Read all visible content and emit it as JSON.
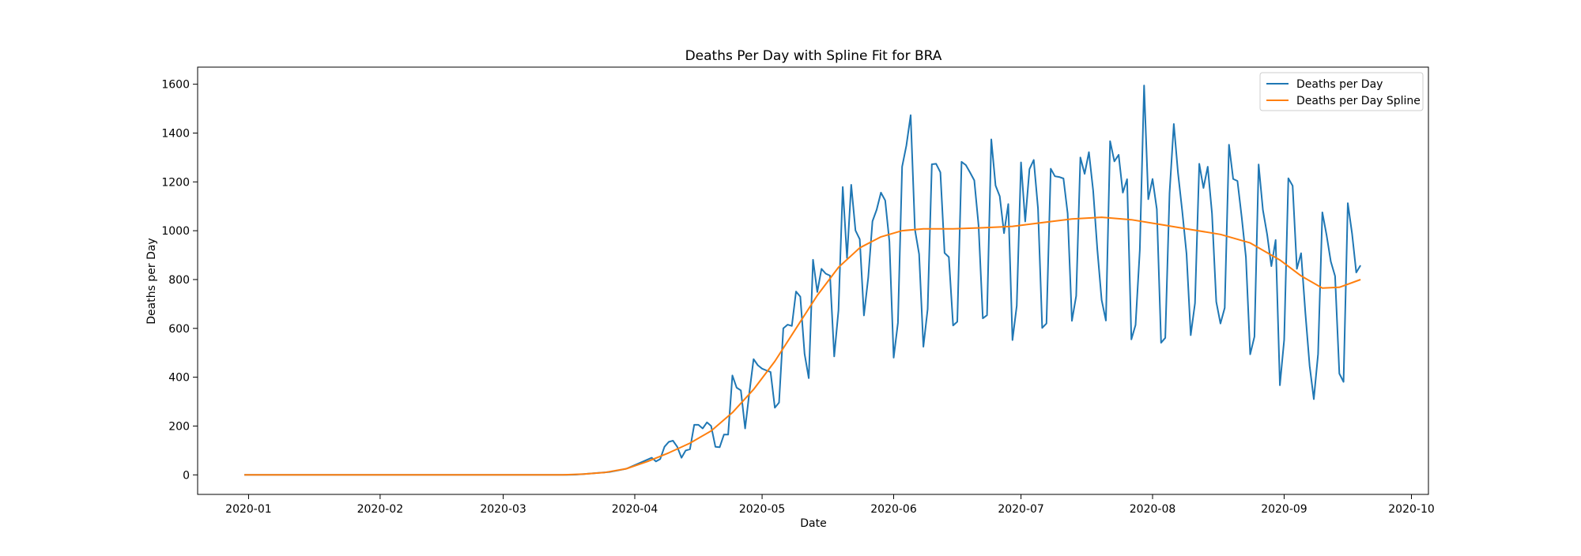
{
  "chart_data": {
    "type": "line",
    "title": "Deaths Per Day with Spline Fit for BRA",
    "xlabel": "Date",
    "ylabel": "Deaths per Day",
    "xlim": [
      "2019-12-20",
      "2020-10-05"
    ],
    "ylim": [
      -80,
      1670
    ],
    "x_ticks": [
      "2020-01",
      "2020-02",
      "2020-03",
      "2020-04",
      "2020-05",
      "2020-06",
      "2020-07",
      "2020-08",
      "2020-09",
      "2020-10"
    ],
    "y_ticks": [
      0,
      200,
      400,
      600,
      800,
      1000,
      1200,
      1400,
      1600
    ],
    "grid": false,
    "legend": {
      "position": "top-right",
      "entries": [
        "Deaths per Day",
        "Deaths per Day Spline"
      ]
    },
    "colors": {
      "Deaths per Day": "#1f77b4",
      "Deaths per Day Spline": "#ff7f0e"
    },
    "series": [
      {
        "name": "Deaths per Day",
        "points": [
          [
            "2019-12-31",
            0
          ],
          [
            "2020-01-15",
            0
          ],
          [
            "2020-02-01",
            0
          ],
          [
            "2020-02-15",
            0
          ],
          [
            "2020-03-01",
            0
          ],
          [
            "2020-03-16",
            0
          ],
          [
            "2020-03-18",
            1
          ],
          [
            "2020-03-20",
            3
          ],
          [
            "2020-03-22",
            6
          ],
          [
            "2020-03-24",
            9
          ],
          [
            "2020-03-26",
            12
          ],
          [
            "2020-03-28",
            18
          ],
          [
            "2020-03-30",
            25
          ],
          [
            "2020-04-01",
            40
          ],
          [
            "2020-04-03",
            55
          ],
          [
            "2020-04-05",
            70
          ],
          [
            "2020-04-06",
            55
          ],
          [
            "2020-04-07",
            65
          ],
          [
            "2020-04-08",
            115
          ],
          [
            "2020-04-09",
            135
          ],
          [
            "2020-04-10",
            140
          ],
          [
            "2020-04-11",
            115
          ],
          [
            "2020-04-12",
            70
          ],
          [
            "2020-04-13",
            100
          ],
          [
            "2020-04-14",
            105
          ],
          [
            "2020-04-15",
            205
          ],
          [
            "2020-04-16",
            205
          ],
          [
            "2020-04-17",
            190
          ],
          [
            "2020-04-18",
            215
          ],
          [
            "2020-04-19",
            200
          ],
          [
            "2020-04-20",
            115
          ],
          [
            "2020-04-21",
            113
          ],
          [
            "2020-04-22",
            165
          ],
          [
            "2020-04-23",
            165
          ],
          [
            "2020-04-24",
            407
          ],
          [
            "2020-04-25",
            357
          ],
          [
            "2020-04-26",
            346
          ],
          [
            "2020-04-27",
            190
          ],
          [
            "2020-04-28",
            338
          ],
          [
            "2020-04-29",
            474
          ],
          [
            "2020-04-30",
            449
          ],
          [
            "2020-05-01",
            435
          ],
          [
            "2020-05-02",
            428
          ],
          [
            "2020-05-03",
            421
          ],
          [
            "2020-05-04",
            275
          ],
          [
            "2020-05-05",
            296
          ],
          [
            "2020-05-06",
            600
          ],
          [
            "2020-05-07",
            615
          ],
          [
            "2020-05-08",
            610
          ],
          [
            "2020-05-09",
            751
          ],
          [
            "2020-05-10",
            730
          ],
          [
            "2020-05-11",
            496
          ],
          [
            "2020-05-12",
            396
          ],
          [
            "2020-05-13",
            881
          ],
          [
            "2020-05-14",
            749
          ],
          [
            "2020-05-15",
            844
          ],
          [
            "2020-05-16",
            824
          ],
          [
            "2020-05-17",
            816
          ],
          [
            "2020-05-18",
            485
          ],
          [
            "2020-05-19",
            674
          ],
          [
            "2020-05-20",
            1179
          ],
          [
            "2020-05-21",
            888
          ],
          [
            "2020-05-22",
            1188
          ],
          [
            "2020-05-23",
            1001
          ],
          [
            "2020-05-24",
            965
          ],
          [
            "2020-05-25",
            653
          ],
          [
            "2020-05-26",
            807
          ],
          [
            "2020-05-27",
            1039
          ],
          [
            "2020-05-28",
            1086
          ],
          [
            "2020-05-29",
            1156
          ],
          [
            "2020-05-30",
            1124
          ],
          [
            "2020-05-31",
            956
          ],
          [
            "2020-06-01",
            480
          ],
          [
            "2020-06-02",
            623
          ],
          [
            "2020-06-03",
            1262
          ],
          [
            "2020-06-04",
            1349
          ],
          [
            "2020-06-05",
            1473
          ],
          [
            "2020-06-06",
            1005
          ],
          [
            "2020-06-07",
            904
          ],
          [
            "2020-06-08",
            525
          ],
          [
            "2020-06-09",
            679
          ],
          [
            "2020-06-10",
            1272
          ],
          [
            "2020-06-11",
            1274
          ],
          [
            "2020-06-12",
            1239
          ],
          [
            "2020-06-13",
            909
          ],
          [
            "2020-06-14",
            892
          ],
          [
            "2020-06-15",
            612
          ],
          [
            "2020-06-16",
            627
          ],
          [
            "2020-06-17",
            1282
          ],
          [
            "2020-06-18",
            1269
          ],
          [
            "2020-06-19",
            1238
          ],
          [
            "2020-06-20",
            1206
          ],
          [
            "2020-06-21",
            1022
          ],
          [
            "2020-06-22",
            641
          ],
          [
            "2020-06-23",
            654
          ],
          [
            "2020-06-24",
            1374
          ],
          [
            "2020-06-25",
            1185
          ],
          [
            "2020-06-26",
            1141
          ],
          [
            "2020-06-27",
            990
          ],
          [
            "2020-06-28",
            1109
          ],
          [
            "2020-06-29",
            552
          ],
          [
            "2020-06-30",
            692
          ],
          [
            "2020-07-01",
            1280
          ],
          [
            "2020-07-02",
            1038
          ],
          [
            "2020-07-03",
            1252
          ],
          [
            "2020-07-04",
            1290
          ],
          [
            "2020-07-05",
            1091
          ],
          [
            "2020-07-06",
            602
          ],
          [
            "2020-07-07",
            620
          ],
          [
            "2020-07-08",
            1254
          ],
          [
            "2020-07-09",
            1223
          ],
          [
            "2020-07-10",
            1220
          ],
          [
            "2020-07-11",
            1214
          ],
          [
            "2020-07-12",
            1071
          ],
          [
            "2020-07-13",
            631
          ],
          [
            "2020-07-14",
            733
          ],
          [
            "2020-07-15",
            1300
          ],
          [
            "2020-07-16",
            1233
          ],
          [
            "2020-07-17",
            1322
          ],
          [
            "2020-07-18",
            1163
          ],
          [
            "2020-07-19",
            921
          ],
          [
            "2020-07-20",
            716
          ],
          [
            "2020-07-21",
            632
          ],
          [
            "2020-07-22",
            1367
          ],
          [
            "2020-07-23",
            1284
          ],
          [
            "2020-07-24",
            1311
          ],
          [
            "2020-07-25",
            1156
          ],
          [
            "2020-07-26",
            1211
          ],
          [
            "2020-07-27",
            555
          ],
          [
            "2020-07-28",
            614
          ],
          [
            "2020-07-29",
            921
          ],
          [
            "2020-07-30",
            1595
          ],
          [
            "2020-07-31",
            1129
          ],
          [
            "2020-08-01",
            1212
          ],
          [
            "2020-08-02",
            1088
          ],
          [
            "2020-08-03",
            541
          ],
          [
            "2020-08-04",
            561
          ],
          [
            "2020-08-05",
            1154
          ],
          [
            "2020-08-06",
            1437
          ],
          [
            "2020-08-07",
            1237
          ],
          [
            "2020-08-08",
            1079
          ],
          [
            "2020-08-09",
            905
          ],
          [
            "2020-08-10",
            572
          ],
          [
            "2020-08-11",
            703
          ],
          [
            "2020-08-12",
            1274
          ],
          [
            "2020-08-13",
            1175
          ],
          [
            "2020-08-14",
            1262
          ],
          [
            "2020-08-15",
            1071
          ],
          [
            "2020-08-16",
            709
          ],
          [
            "2020-08-17",
            620
          ],
          [
            "2020-08-18",
            684
          ],
          [
            "2020-08-19",
            1352
          ],
          [
            "2020-08-20",
            1212
          ],
          [
            "2020-08-21",
            1204
          ],
          [
            "2020-08-22",
            1055
          ],
          [
            "2020-08-23",
            892
          ],
          [
            "2020-08-24",
            494
          ],
          [
            "2020-08-25",
            566
          ],
          [
            "2020-08-26",
            1271
          ],
          [
            "2020-08-27",
            1085
          ],
          [
            "2020-08-28",
            984
          ],
          [
            "2020-08-29",
            855
          ],
          [
            "2020-08-30",
            962
          ],
          [
            "2020-08-31",
            367
          ],
          [
            "2020-09-01",
            553
          ],
          [
            "2020-09-02",
            1215
          ],
          [
            "2020-09-03",
            1184
          ],
          [
            "2020-09-04",
            844
          ],
          [
            "2020-09-05",
            908
          ],
          [
            "2020-09-06",
            664
          ],
          [
            "2020-09-07",
            447
          ],
          [
            "2020-09-08",
            310
          ],
          [
            "2020-09-09",
            495
          ],
          [
            "2020-09-10",
            1075
          ],
          [
            "2020-09-11",
            983
          ],
          [
            "2020-09-12",
            874
          ],
          [
            "2020-09-13",
            814
          ],
          [
            "2020-09-14",
            415
          ],
          [
            "2020-09-15",
            381
          ],
          [
            "2020-09-16",
            1113
          ],
          [
            "2020-09-17",
            988
          ],
          [
            "2020-09-18",
            829
          ],
          [
            "2020-09-19",
            858
          ]
        ]
      },
      {
        "name": "Deaths per Day Spline",
        "points": [
          [
            "2019-12-31",
            0
          ],
          [
            "2020-01-15",
            0
          ],
          [
            "2020-02-01",
            0
          ],
          [
            "2020-02-15",
            0
          ],
          [
            "2020-03-01",
            0
          ],
          [
            "2020-03-15",
            0
          ],
          [
            "2020-03-20",
            3
          ],
          [
            "2020-03-25",
            10
          ],
          [
            "2020-03-30",
            25
          ],
          [
            "2020-04-04",
            55
          ],
          [
            "2020-04-09",
            90
          ],
          [
            "2020-04-14",
            130
          ],
          [
            "2020-04-19",
            180
          ],
          [
            "2020-04-24",
            255
          ],
          [
            "2020-04-29",
            350
          ],
          [
            "2020-05-04",
            465
          ],
          [
            "2020-05-09",
            600
          ],
          [
            "2020-05-14",
            735
          ],
          [
            "2020-05-19",
            850
          ],
          [
            "2020-05-24",
            930
          ],
          [
            "2020-05-29",
            975
          ],
          [
            "2020-06-03",
            1000
          ],
          [
            "2020-06-08",
            1008
          ],
          [
            "2020-06-15",
            1008
          ],
          [
            "2020-06-22",
            1012
          ],
          [
            "2020-06-29",
            1018
          ],
          [
            "2020-07-06",
            1033
          ],
          [
            "2020-07-13",
            1048
          ],
          [
            "2020-07-20",
            1055
          ],
          [
            "2020-07-27",
            1045
          ],
          [
            "2020-08-03",
            1025
          ],
          [
            "2020-08-10",
            1005
          ],
          [
            "2020-08-17",
            985
          ],
          [
            "2020-08-24",
            950
          ],
          [
            "2020-08-31",
            880
          ],
          [
            "2020-09-05",
            815
          ],
          [
            "2020-09-10",
            765
          ],
          [
            "2020-09-14",
            768
          ],
          [
            "2020-09-19",
            800
          ]
        ]
      }
    ]
  }
}
